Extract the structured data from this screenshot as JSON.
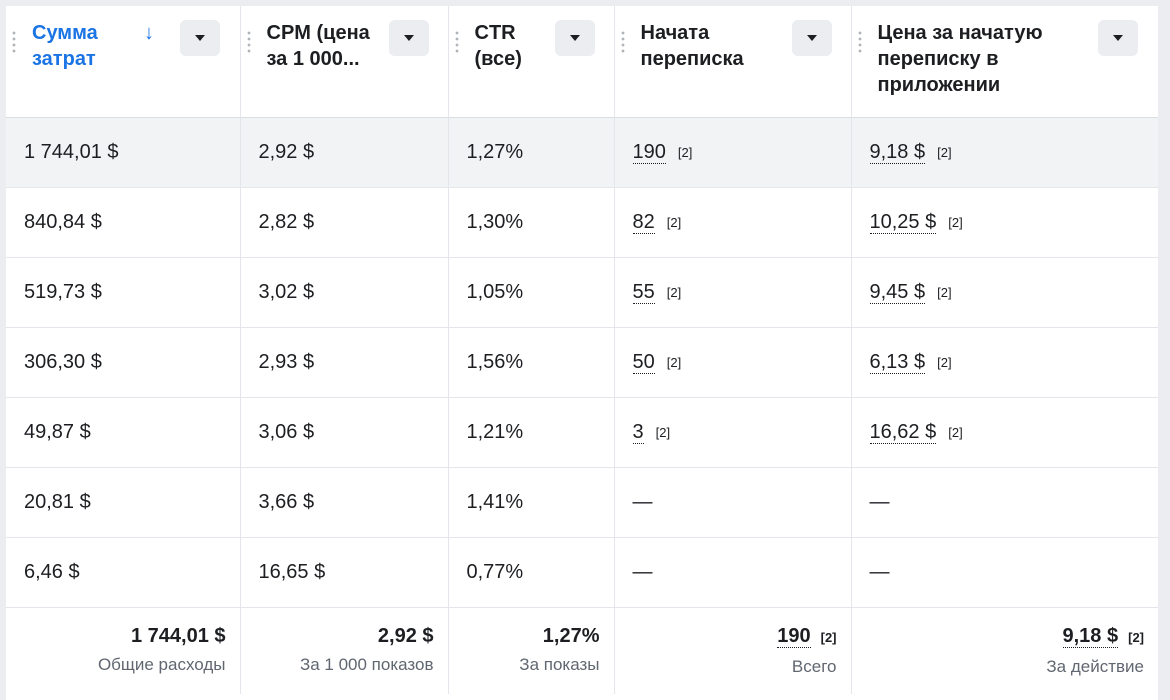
{
  "columns": [
    {
      "label": "Сумма затрат",
      "sorted": true,
      "sort_icon": "↓"
    },
    {
      "label": "CPM (цена за 1 000..."
    },
    {
      "label": "CTR (все)"
    },
    {
      "label": "Начата переписка"
    },
    {
      "label": "Цена за начатую переписку в приложении"
    }
  ],
  "rows": [
    {
      "spend": "1 744,01 $",
      "cpm": "2,92 $",
      "ctr": "1,27%",
      "conv": "190",
      "conv_note": "[2]",
      "cost": "9,18 $",
      "cost_note": "[2]"
    },
    {
      "spend": "840,84 $",
      "cpm": "2,82 $",
      "ctr": "1,30%",
      "conv": "82",
      "conv_note": "[2]",
      "cost": "10,25 $",
      "cost_note": "[2]"
    },
    {
      "spend": "519,73 $",
      "cpm": "3,02 $",
      "ctr": "1,05%",
      "conv": "55",
      "conv_note": "[2]",
      "cost": "9,45 $",
      "cost_note": "[2]"
    },
    {
      "spend": "306,30 $",
      "cpm": "2,93 $",
      "ctr": "1,56%",
      "conv": "50",
      "conv_note": "[2]",
      "cost": "6,13 $",
      "cost_note": "[2]"
    },
    {
      "spend": "49,87 $",
      "cpm": "3,06 $",
      "ctr": "1,21%",
      "conv": "3",
      "conv_note": "[2]",
      "cost": "16,62 $",
      "cost_note": "[2]"
    },
    {
      "spend": "20,81 $",
      "cpm": "3,66 $",
      "ctr": "1,41%",
      "conv": "—",
      "cost": "—"
    },
    {
      "spend": "6,46 $",
      "cpm": "16,65 $",
      "ctr": "0,77%",
      "conv": "—",
      "cost": "—"
    }
  ],
  "totals": {
    "spend": {
      "value": "1 744,01 $",
      "sub": "Общие расходы"
    },
    "cpm": {
      "value": "2,92 $",
      "sub": "За 1 000 показов"
    },
    "ctr": {
      "value": "1,27%",
      "sub": "За показы"
    },
    "conv": {
      "value": "190",
      "note": "[2]",
      "sub": "Всего"
    },
    "cost": {
      "value": "9,18 $",
      "note": "[2]",
      "sub": "За действие"
    }
  },
  "colors": {
    "accent": "#1b74e4",
    "highlight_row": "#f2f3f5"
  }
}
